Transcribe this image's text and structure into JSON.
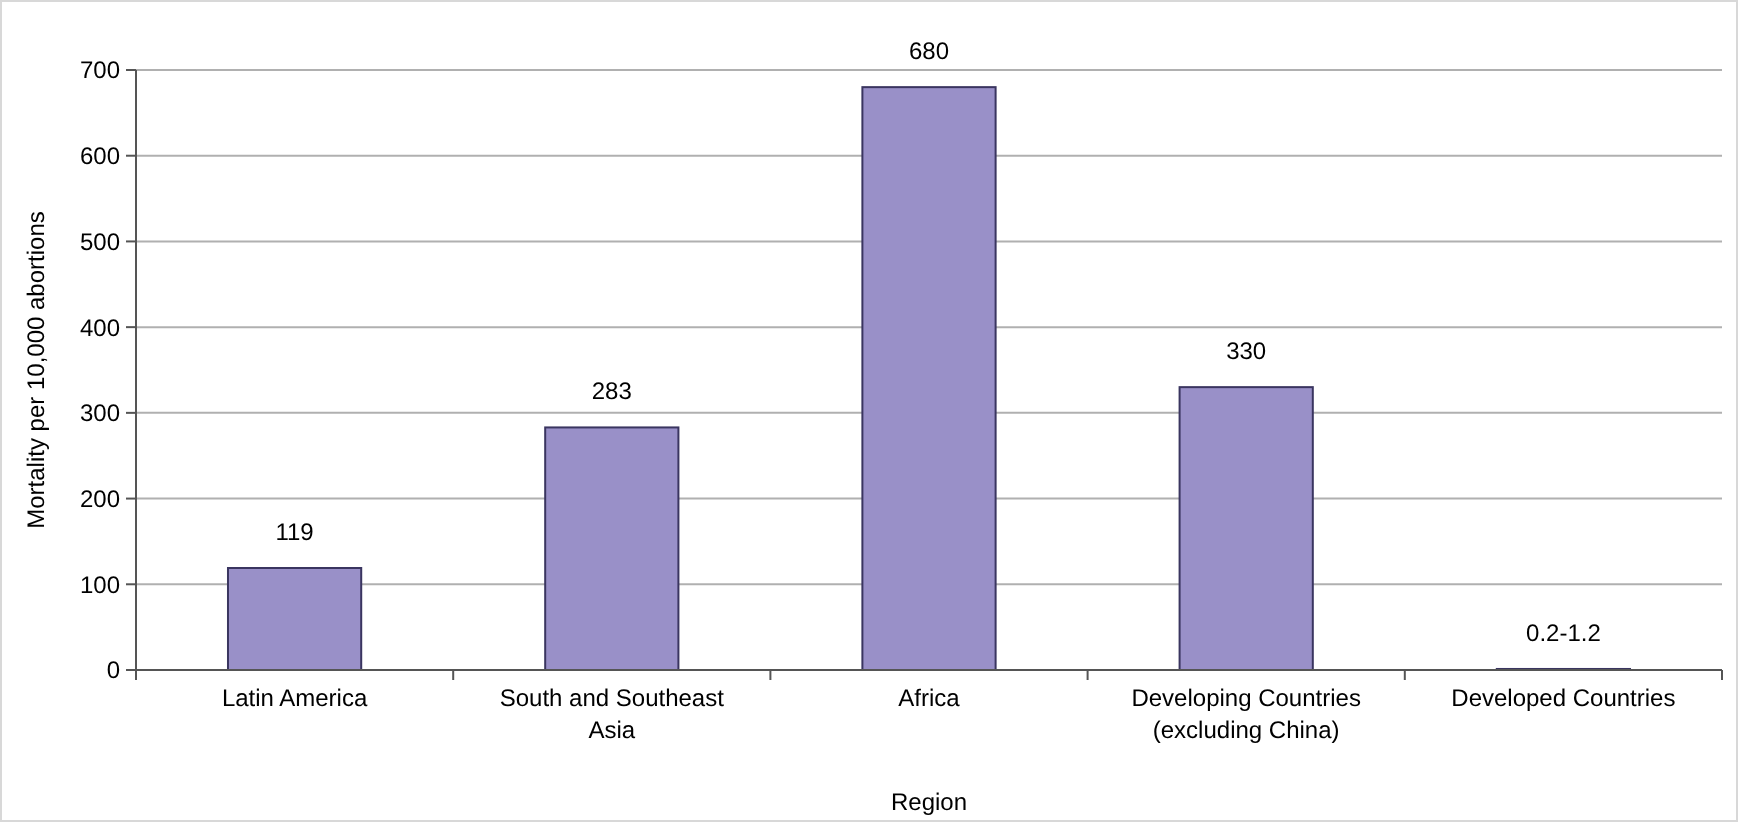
{
  "chart_data": {
    "type": "bar",
    "xlabel": "Region",
    "ylabel": "Mortality per 10,000 abortions",
    "categories": [
      "Latin America",
      "South and Southeast Asia",
      "Africa",
      "Developing Countries (excluding China)",
      "Developed Countries"
    ],
    "values": [
      119,
      283,
      680,
      330,
      1.0
    ],
    "base": [
      0,
      0,
      0,
      0,
      0.2
    ],
    "value_labels": [
      "119",
      "283",
      "680",
      "330",
      "0.2-1.2"
    ],
    "color": "#9990c8",
    "ylim": [
      0,
      700
    ],
    "yticks": [
      0,
      100,
      200,
      300,
      400,
      500,
      600,
      700
    ],
    "grid": "y"
  }
}
